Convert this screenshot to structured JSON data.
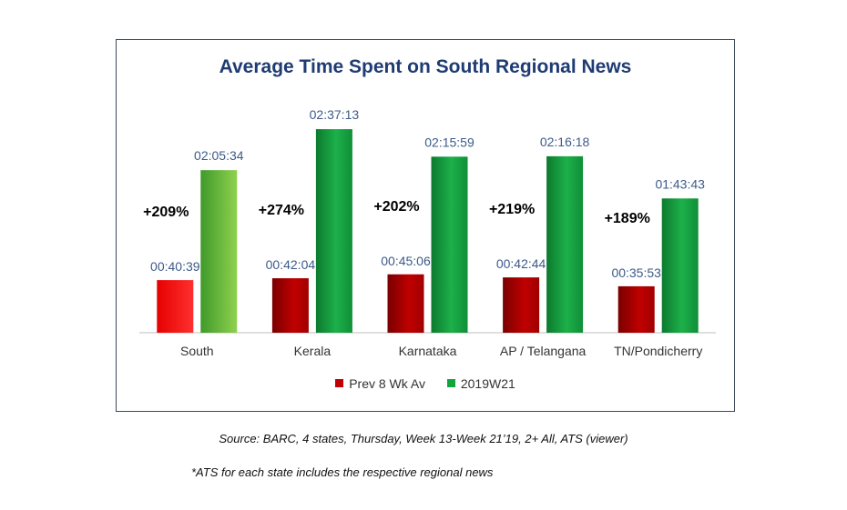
{
  "chart_data": {
    "type": "bar",
    "title": "Average Time Spent on South Regional News",
    "categories": [
      "South",
      "Kerala",
      "Karnataka",
      "AP / Telangana",
      "TN/Pondicherry"
    ],
    "series": [
      {
        "name": "Prev 8 Wk Av",
        "values": [
          40.65,
          42.07,
          45.1,
          42.73,
          35.88
        ],
        "labels": [
          "00:40:39",
          "00:42:04",
          "00:45:06",
          "00:42:44",
          "00:35:53"
        ]
      },
      {
        "name": "2019W21",
        "values": [
          125.57,
          157.22,
          135.98,
          136.3,
          103.72
        ],
        "labels": [
          "02:05:34",
          "02:37:13",
          "02:15:59",
          "02:16:18",
          "01:43:43"
        ]
      }
    ],
    "growth_labels": [
      "+209%",
      "+274%",
      "+202%",
      "+219%",
      "+189%"
    ],
    "ylim": [
      0,
      165
    ],
    "unit": "minutes",
    "grid": false,
    "legend_position": "bottom",
    "colors": {
      "prev": "#c00000",
      "current": "#12a53f",
      "south_current": "#6dbf3b",
      "south_prev": "#ff1a1a",
      "value_label": "#3d5a8a",
      "axis": "#bfbfbf"
    }
  },
  "notes": {
    "source": "Source: BARC, 4 states, Thursday, Week 13-Week 21’19, 2+ All, ATS (viewer)",
    "footnote": "*ATS for each state includes the respective regional news"
  }
}
